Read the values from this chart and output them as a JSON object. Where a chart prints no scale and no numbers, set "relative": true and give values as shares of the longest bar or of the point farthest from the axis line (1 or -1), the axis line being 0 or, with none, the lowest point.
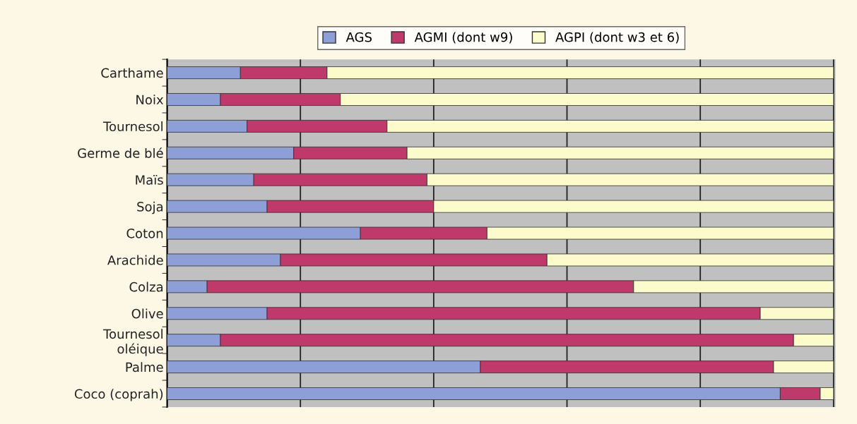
{
  "chart_data": {
    "type": "bar",
    "orientation": "horizontal",
    "stacked": true,
    "relative": true,
    "grid": "x",
    "legend": "top",
    "categories": [
      "Carthame",
      "Noix",
      "Tournesol",
      "Germe de blé",
      "Maïs",
      "Soja",
      "Coton",
      "Arachide",
      "Colza",
      "Olive",
      "Tournesol\noléique",
      "Palme",
      "Coco (coprah)"
    ],
    "series": [
      {
        "name": "AGS",
        "color": "#8e9ed6",
        "values": [
          0.11,
          0.08,
          0.12,
          0.19,
          0.13,
          0.15,
          0.29,
          0.17,
          0.06,
          0.15,
          0.08,
          0.47,
          0.92
        ]
      },
      {
        "name": "AGMI (dont w9)",
        "color": "#c0396b",
        "values": [
          0.13,
          0.18,
          0.21,
          0.17,
          0.26,
          0.25,
          0.19,
          0.4,
          0.64,
          0.74,
          0.86,
          0.44,
          0.06
        ]
      },
      {
        "name": "AGPI (dont w3 et 6)",
        "color": "#fcfbcc",
        "values": [
          0.76,
          0.74,
          0.67,
          0.64,
          0.61,
          0.6,
          0.52,
          0.43,
          0.3,
          0.11,
          0.06,
          0.09,
          0.02
        ]
      }
    ]
  }
}
